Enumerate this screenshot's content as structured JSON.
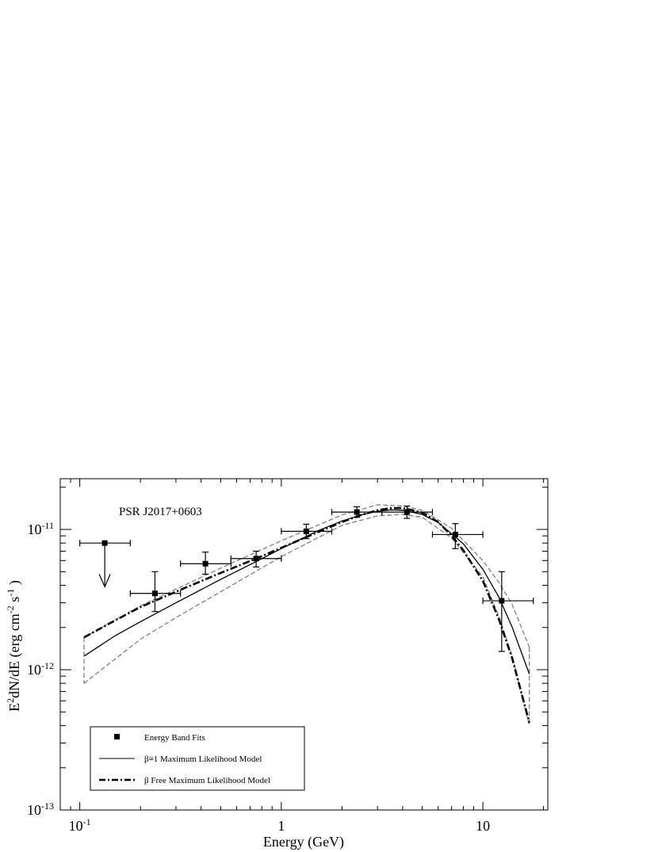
{
  "chart_data": {
    "type": "scatter",
    "annotation": "PSR J2017+0603",
    "xlabel": "Energy (GeV)",
    "ylabel": {
      "base": "E",
      "sup1": "2",
      "mid": "dN/dE (erg cm",
      "sup2": "-2",
      "mid2": " s",
      "sup3": "-1",
      "end": " )"
    },
    "xscale": "log",
    "yscale": "log",
    "xlim": [
      0.08,
      21
    ],
    "ylim": [
      1e-13,
      2.3e-11
    ],
    "xticks": [
      {
        "value": 0.1,
        "base": "10",
        "exp": "-1"
      },
      {
        "value": 1,
        "base": "1",
        "exp": ""
      },
      {
        "value": 10,
        "base": "10",
        "exp": ""
      }
    ],
    "yticks": [
      {
        "value": 1e-13,
        "base": "10",
        "exp": "-13"
      },
      {
        "value": 1e-12,
        "base": "10",
        "exp": "-12"
      },
      {
        "value": 1e-11,
        "base": "10",
        "exp": "-11"
      }
    ],
    "grid": false,
    "legend_position": "bottom-left",
    "legend": [
      {
        "label": "Energy Band Fits",
        "style": "marker"
      },
      {
        "label": "β≡1 Maximum Likelihood Model",
        "style": "solid"
      },
      {
        "label": "β Free Maximum Likelihood Model",
        "style": "dashdot"
      }
    ],
    "energy_band_fits": [
      {
        "x": 0.236,
        "xlo": 0.178,
        "xhi": 0.316,
        "y": 3.5e-12,
        "ylo": 2.6e-12,
        "yhi": 5e-12
      },
      {
        "x": 0.42,
        "xlo": 0.316,
        "xhi": 0.562,
        "y": 5.7e-12,
        "ylo": 4.8e-12,
        "yhi": 6.9e-12
      },
      {
        "x": 0.75,
        "xlo": 0.562,
        "xhi": 1.0,
        "y": 6.2e-12,
        "ylo": 5.4e-12,
        "yhi": 7e-12
      },
      {
        "x": 1.33,
        "xlo": 1.0,
        "xhi": 1.78,
        "y": 9.7e-12,
        "ylo": 8.6e-12,
        "yhi": 1.09e-11
      },
      {
        "x": 2.37,
        "xlo": 1.78,
        "xhi": 3.16,
        "y": 1.33e-11,
        "ylo": 1.22e-11,
        "yhi": 1.45e-11
      },
      {
        "x": 4.2,
        "xlo": 3.16,
        "xhi": 5.62,
        "y": 1.33e-11,
        "ylo": 1.2e-11,
        "yhi": 1.47e-11
      },
      {
        "x": 7.3,
        "xlo": 5.62,
        "xhi": 10.0,
        "y": 9.2e-12,
        "ylo": 7.3e-12,
        "yhi": 1.1e-11
      },
      {
        "x": 12.4,
        "xlo": 10.0,
        "xhi": 17.8,
        "y": 3.1e-12,
        "ylo": 1.35e-12,
        "yhi": 5e-12
      }
    ],
    "upper_limits": [
      {
        "x": 0.133,
        "xlo": 0.1,
        "xhi": 0.178,
        "y": 8e-12,
        "arrow_to": 3.9e-12
      }
    ],
    "series": [
      {
        "name": "β≡1 Maximum Likelihood Model",
        "style": "solid",
        "x": [
          0.105,
          0.15,
          0.2,
          0.3,
          0.5,
          0.75,
          1.0,
          1.5,
          2.0,
          2.5,
          3.0,
          3.5,
          4.0,
          5.0,
          6.0,
          7.0,
          8.0,
          10.0,
          12.0,
          14.0,
          17.0
        ],
        "y": [
          1.25e-12,
          1.75e-12,
          2.2e-12,
          3e-12,
          4.4e-12,
          5.9e-12,
          7.3e-12,
          9.7e-12,
          1.15e-11,
          1.27e-11,
          1.35e-11,
          1.38e-11,
          1.37e-11,
          1.28e-11,
          1.12e-11,
          9.3e-12,
          7.9e-12,
          5.2e-12,
          3.3e-12,
          2e-12,
          9.3e-13
        ]
      },
      {
        "name": "β Free Maximum Likelihood Model",
        "style": "dashdot",
        "x": [
          0.105,
          0.15,
          0.2,
          0.3,
          0.5,
          0.75,
          1.0,
          1.5,
          2.0,
          2.5,
          3.0,
          3.5,
          4.0,
          5.0,
          6.0,
          7.0,
          8.0,
          10.0,
          12.0,
          14.0,
          17.0
        ],
        "y": [
          1.7e-12,
          2.25e-12,
          2.8e-12,
          3.6e-12,
          4.9e-12,
          6.2e-12,
          7.4e-12,
          9.5e-12,
          1.13e-11,
          1.27e-11,
          1.37e-11,
          1.42e-11,
          1.42e-11,
          1.32e-11,
          1.13e-11,
          9e-12,
          7.1e-12,
          4.3e-12,
          2.3e-12,
          1.2e-12,
          4.2e-13
        ]
      }
    ],
    "confidence_band": {
      "style": "dashed-gray",
      "upper": {
        "x": [
          0.105,
          0.2,
          0.3,
          0.5,
          1.0,
          2.0,
          3.0,
          4.0,
          5.0,
          7.0,
          10.0,
          12.0,
          14.0,
          17.0
        ],
        "y": [
          1.7e-12,
          2.85e-12,
          3.75e-12,
          5.3e-12,
          8.3e-12,
          1.27e-11,
          1.5e-11,
          1.47e-11,
          1.37e-11,
          1.02e-11,
          6e-12,
          4.2e-12,
          2.9e-12,
          1.45e-12
        ]
      },
      "lower": {
        "x": [
          0.105,
          0.2,
          0.3,
          0.5,
          1.0,
          2.0,
          3.0,
          4.0,
          5.0,
          7.0,
          10.0,
          12.0,
          14.0,
          17.0
        ],
        "y": [
          8e-13,
          1.65e-12,
          2.35e-12,
          3.6e-12,
          6.4e-12,
          1.07e-11,
          1.25e-11,
          1.28e-11,
          1.22e-11,
          8.7e-12,
          4.6e-12,
          2.4e-12,
          1.25e-12,
          4e-13
        ]
      }
    },
    "colors": {
      "axis": "#000000",
      "data": "#000000",
      "band": "#808080"
    }
  }
}
